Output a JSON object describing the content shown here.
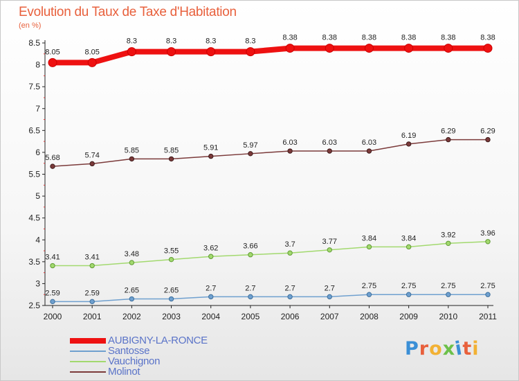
{
  "title": "Evolution du Taux de Taxe d'Habitation",
  "subtitle": "(en %)",
  "logo": {
    "text": "Proxiti",
    "colors": [
      "#3a8fd6",
      "#e8603c",
      "#f2b134",
      "#6cc04a",
      "#3a8fd6",
      "#e8603c",
      "#f2b134"
    ]
  },
  "chart_data": {
    "type": "line",
    "x": [
      "2000",
      "2001",
      "2002",
      "2003",
      "2004",
      "2005",
      "2006",
      "2007",
      "2008",
      "2009",
      "2010",
      "2011"
    ],
    "ylim": [
      2.5,
      8.5
    ],
    "yticks": [
      2.5,
      3,
      3.5,
      4,
      4.5,
      5,
      5.5,
      6,
      6.5,
      7,
      7.5,
      8,
      8.5
    ],
    "ytick_labels": [
      "2.5",
      "3",
      "3.5",
      "4",
      "4.5",
      "5",
      "5.5",
      "6",
      "6.5",
      "7",
      "7.5",
      "8",
      "8.5"
    ],
    "grid": false,
    "legend_position": "bottom-left",
    "series": [
      {
        "name": "AUBIGNY-LA-RONCE",
        "color": "#ee1111",
        "values": [
          8.05,
          8.05,
          8.3,
          8.3,
          8.3,
          8.3,
          8.38,
          8.38,
          8.38,
          8.38,
          8.38,
          8.38
        ],
        "labels": [
          "8.05",
          "8.05",
          "8.3",
          "8.3",
          "8.3",
          "8.3",
          "8.38",
          "8.38",
          "8.38",
          "8.38",
          "8.38",
          "8.38"
        ]
      },
      {
        "name": "Santosse",
        "color": "#6fa0cf",
        "values": [
          2.59,
          2.59,
          2.65,
          2.65,
          2.7,
          2.7,
          2.7,
          2.7,
          2.75,
          2.75,
          2.75,
          2.75
        ],
        "labels": [
          "2.59",
          "2.59",
          "2.65",
          "2.65",
          "2.7",
          "2.7",
          "2.7",
          "2.7",
          "2.75",
          "2.75",
          "2.75",
          "2.75"
        ]
      },
      {
        "name": "Vauchignon",
        "color": "#a2d96e",
        "values": [
          3.41,
          3.41,
          3.48,
          3.55,
          3.62,
          3.66,
          3.7,
          3.77,
          3.84,
          3.84,
          3.92,
          3.96
        ],
        "labels": [
          "3.41",
          "3.41",
          "3.48",
          "3.55",
          "3.62",
          "3.66",
          "3.7",
          "3.77",
          "3.84",
          "3.84",
          "3.92",
          "3.96"
        ]
      },
      {
        "name": "Molinot",
        "color": "#7b3a3a",
        "values": [
          5.68,
          5.74,
          5.85,
          5.85,
          5.91,
          5.97,
          6.03,
          6.03,
          6.03,
          6.19,
          6.29,
          6.29
        ],
        "labels": [
          "5.68",
          "5.74",
          "5.85",
          "5.85",
          "5.91",
          "5.97",
          "6.03",
          "6.03",
          "6.03",
          "6.19",
          "6.29",
          "6.29"
        ]
      }
    ]
  }
}
